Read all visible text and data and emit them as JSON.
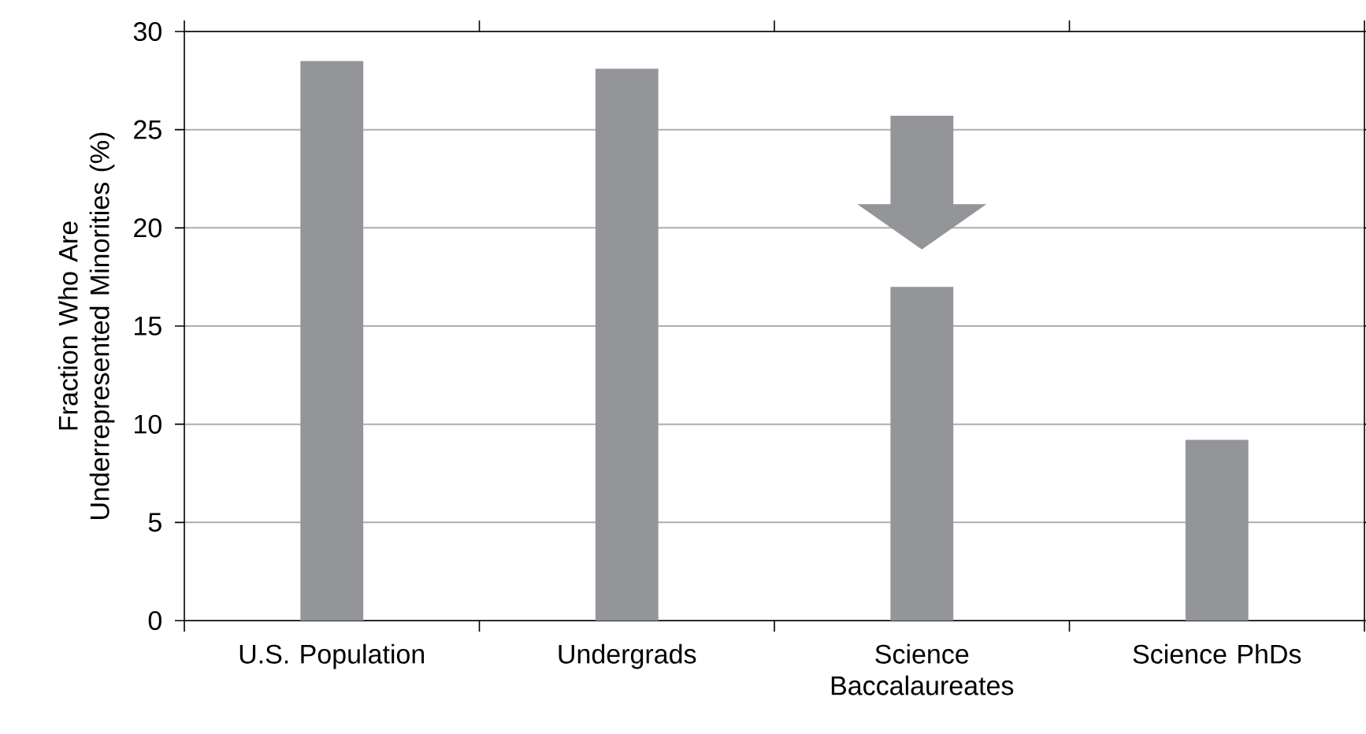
{
  "chart_data": {
    "type": "bar",
    "ylabel": "Fraction Who Are Underrepresented Minorities (%)",
    "categories": [
      "U.S. Population",
      "Undergrads",
      "Science Baccalaureates",
      "Science PhDs"
    ],
    "values": [
      28.5,
      28.1,
      17.0,
      9.2
    ],
    "color": "#939598",
    "ylim": [
      0,
      30
    ],
    "yticks": [
      0,
      5,
      10,
      15,
      20,
      25,
      30
    ],
    "grid": "y"
  }
}
